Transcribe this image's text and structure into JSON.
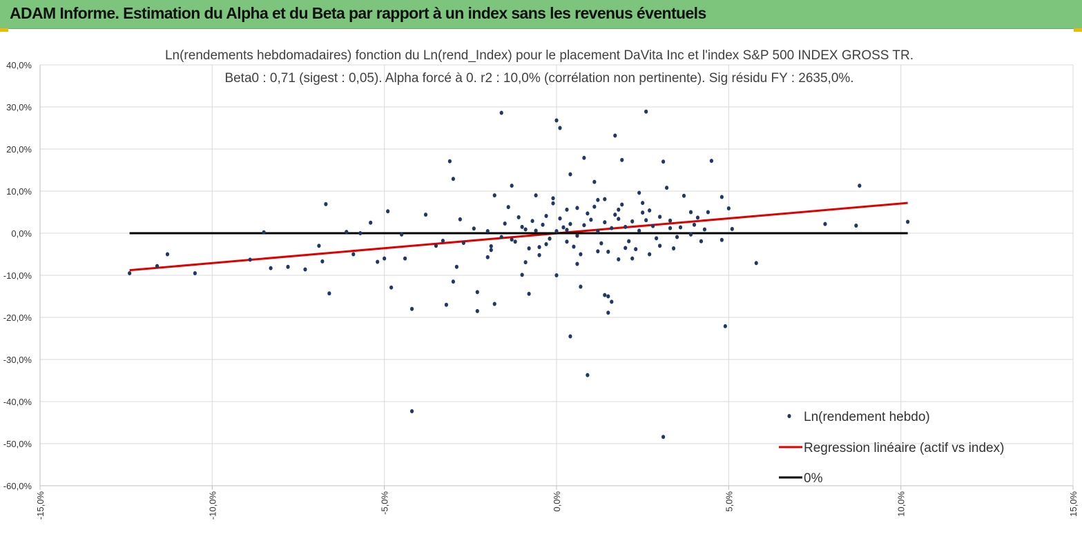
{
  "page": {
    "banner_title": "ADAM Informe. Estimation du Alpha et du Beta par rapport à un index sans les revenus éventuels",
    "banner_color": "#7dc57d",
    "corner_color": "#f2b800"
  },
  "chart_data": {
    "type": "scatter",
    "title": "Ln(rendements hebdomadaires) fonction du Ln(rend_Index) pour le placement DaVita Inc et l'index S&P 500 INDEX GROSS TR.",
    "subtitle": "Beta0 : 0,71 (sigest : 0,05). Alpha forcé à 0. r2 : 10,0% (corrélation non pertinente). Sig résidu FY : 2635,0%.",
    "xlabel": "",
    "ylabel": "",
    "xlim": [
      -15,
      15
    ],
    "ylim": [
      -60,
      40
    ],
    "x_ticks": [
      -15,
      -10,
      -5,
      0,
      5,
      10,
      15
    ],
    "y_ticks": [
      40,
      30,
      20,
      10,
      0,
      -10,
      -20,
      -30,
      -40,
      -50,
      -60
    ],
    "x_tick_labels": [
      "-15,0%",
      "-10,0%",
      "-5,0%",
      "0,0%",
      "5,0%",
      "10,0%",
      "15,0%"
    ],
    "y_tick_labels": [
      "40,0%",
      "30,0%",
      "20,0%",
      "10,0%",
      "0,0%",
      "-10,0%",
      "-20,0%",
      "-30,0%",
      "-40,0%",
      "-50,0%",
      "-60,0%"
    ],
    "grid": true,
    "legend_position": "bottom-right",
    "series": [
      {
        "name": "Ln(rendement hebdo)",
        "kind": "points",
        "color": "#1f3864",
        "points": [
          [
            -12.4,
            -9.5
          ],
          [
            -11.6,
            -7.8
          ],
          [
            -11.3,
            -5.0
          ],
          [
            -10.5,
            -9.5
          ],
          [
            -8.9,
            -6.3
          ],
          [
            -8.5,
            0.2
          ],
          [
            -8.3,
            -8.3
          ],
          [
            -7.8,
            -8.0
          ],
          [
            -7.3,
            -8.6
          ],
          [
            -6.9,
            -3.0
          ],
          [
            -6.7,
            6.9
          ],
          [
            -6.8,
            -6.7
          ],
          [
            -6.6,
            -14.3
          ],
          [
            -6.1,
            0.3
          ],
          [
            -5.9,
            -5.0
          ],
          [
            -5.7,
            0.0
          ],
          [
            -5.4,
            2.5
          ],
          [
            -5.2,
            -6.8
          ],
          [
            -5.0,
            -6.0
          ],
          [
            -4.9,
            5.2
          ],
          [
            -4.8,
            -12.9
          ],
          [
            -4.5,
            -0.3
          ],
          [
            -4.2,
            -18.0
          ],
          [
            -4.4,
            -6.0
          ],
          [
            -4.2,
            -42.3
          ],
          [
            -3.8,
            4.4
          ],
          [
            -3.5,
            -3.0
          ],
          [
            -3.2,
            -17.0
          ],
          [
            -3.1,
            17.1
          ],
          [
            -3.0,
            12.9
          ],
          [
            -3.0,
            -11.5
          ],
          [
            -2.9,
            -8.0
          ],
          [
            -2.8,
            3.3
          ],
          [
            -2.3,
            -14.0
          ],
          [
            -2.3,
            -18.5
          ],
          [
            -2.0,
            -5.7
          ],
          [
            -1.9,
            -4.0
          ],
          [
            -1.8,
            9.0
          ],
          [
            -1.8,
            -16.8
          ],
          [
            -1.6,
            28.6
          ],
          [
            -1.3,
            -1.5
          ],
          [
            -1.4,
            6.2
          ],
          [
            -1.3,
            11.3
          ],
          [
            -1.0,
            -9.9
          ],
          [
            -0.8,
            -14.4
          ],
          [
            -0.6,
            9.0
          ],
          [
            -0.5,
            -3.3
          ],
          [
            -0.3,
            4.1
          ],
          [
            -0.1,
            8.3
          ],
          [
            0.0,
            26.8
          ],
          [
            0.0,
            -10.0
          ],
          [
            0.1,
            25.0
          ],
          [
            0.3,
            -2.0
          ],
          [
            0.3,
            0.8
          ],
          [
            0.4,
            14.0
          ],
          [
            0.4,
            -24.5
          ],
          [
            0.6,
            6.0
          ],
          [
            0.7,
            -12.7
          ],
          [
            0.8,
            17.9
          ],
          [
            0.9,
            -33.7
          ],
          [
            1.1,
            12.2
          ],
          [
            1.2,
            -4.3
          ],
          [
            1.4,
            8.1
          ],
          [
            1.4,
            -14.7
          ],
          [
            1.5,
            -15.0
          ],
          [
            1.5,
            -18.9
          ],
          [
            1.6,
            -16.3
          ],
          [
            1.7,
            23.2
          ],
          [
            1.8,
            5.6
          ],
          [
            1.9,
            17.4
          ],
          [
            2.0,
            -3.5
          ],
          [
            2.2,
            -6.0
          ],
          [
            2.4,
            9.6
          ],
          [
            2.6,
            28.9
          ],
          [
            2.7,
            -5.0
          ],
          [
            3.0,
            -3.0
          ],
          [
            3.1,
            17.0
          ],
          [
            3.1,
            -48.4
          ],
          [
            3.2,
            10.8
          ],
          [
            3.3,
            1.2
          ],
          [
            3.5,
            -0.9
          ],
          [
            3.7,
            8.9
          ],
          [
            3.9,
            5.0
          ],
          [
            4.0,
            2.0
          ],
          [
            4.2,
            -1.9
          ],
          [
            4.4,
            5.0
          ],
          [
            4.5,
            17.2
          ],
          [
            4.8,
            8.6
          ],
          [
            4.8,
            -1.6
          ],
          [
            4.9,
            -22.1
          ],
          [
            5.0,
            5.9
          ],
          [
            5.1,
            1.0
          ],
          [
            5.8,
            -7.1
          ],
          [
            7.8,
            2.2
          ],
          [
            8.7,
            1.8
          ],
          [
            8.8,
            11.3
          ],
          [
            10.2,
            2.7
          ],
          [
            -0.9,
            0.9
          ],
          [
            -0.6,
            0.6
          ],
          [
            -0.4,
            2.0
          ],
          [
            -0.2,
            -1.3
          ],
          [
            0.0,
            0.5
          ],
          [
            0.2,
            1.4
          ],
          [
            0.4,
            2.2
          ],
          [
            0.6,
            -0.6
          ],
          [
            0.8,
            1.9
          ],
          [
            1.0,
            3.2
          ],
          [
            1.2,
            0.5
          ],
          [
            1.4,
            2.6
          ],
          [
            1.6,
            1.2
          ],
          [
            1.8,
            3.4
          ],
          [
            2.0,
            1.5
          ],
          [
            2.2,
            2.8
          ],
          [
            2.4,
            0.6
          ],
          [
            2.6,
            3.1
          ],
          [
            2.8,
            1.7
          ],
          [
            3.0,
            3.9
          ],
          [
            -1.2,
            -2.0
          ],
          [
            -1.0,
            1.5
          ],
          [
            -0.8,
            -3.6
          ],
          [
            -0.7,
            2.9
          ],
          [
            -0.3,
            -2.6
          ],
          [
            0.1,
            3.5
          ],
          [
            0.5,
            -3.2
          ],
          [
            0.9,
            4.7
          ],
          [
            1.3,
            -2.4
          ],
          [
            1.7,
            4.4
          ],
          [
            2.1,
            -1.9
          ],
          [
            2.5,
            4.9
          ],
          [
            2.9,
            -1.2
          ],
          [
            3.3,
            3.0
          ],
          [
            -2.0,
            0.5
          ],
          [
            -1.6,
            -0.9
          ],
          [
            -1.1,
            3.8
          ],
          [
            -0.5,
            -5.2
          ],
          [
            0.3,
            5.6
          ],
          [
            0.7,
            -5.0
          ],
          [
            1.1,
            6.3
          ],
          [
            1.5,
            -4.4
          ],
          [
            1.9,
            6.8
          ],
          [
            2.3,
            -3.8
          ],
          [
            2.7,
            5.4
          ],
          [
            3.6,
            1.4
          ],
          [
            4.1,
            3.7
          ],
          [
            -3.3,
            -1.8
          ],
          [
            -2.7,
            -2.3
          ],
          [
            -2.4,
            1.1
          ],
          [
            -1.9,
            -3.1
          ],
          [
            -1.5,
            2.3
          ],
          [
            -0.9,
            -6.9
          ],
          [
            -0.1,
            7.1
          ],
          [
            0.6,
            -7.3
          ],
          [
            1.2,
            7.9
          ],
          [
            1.8,
            -6.2
          ],
          [
            2.5,
            7.2
          ],
          [
            3.4,
            -3.6
          ],
          [
            3.9,
            -0.3
          ],
          [
            4.3,
            0.9
          ]
        ]
      },
      {
        "name": "Regression linéaire (actif vs index)",
        "kind": "line",
        "color": "#e00000",
        "points": [
          [
            -12.4,
            -8.8
          ],
          [
            10.2,
            7.2
          ]
        ]
      },
      {
        "name": "0%",
        "kind": "line",
        "color": "#000000",
        "points": [
          [
            -12.4,
            0.0
          ],
          [
            10.2,
            0.0
          ]
        ]
      }
    ]
  }
}
